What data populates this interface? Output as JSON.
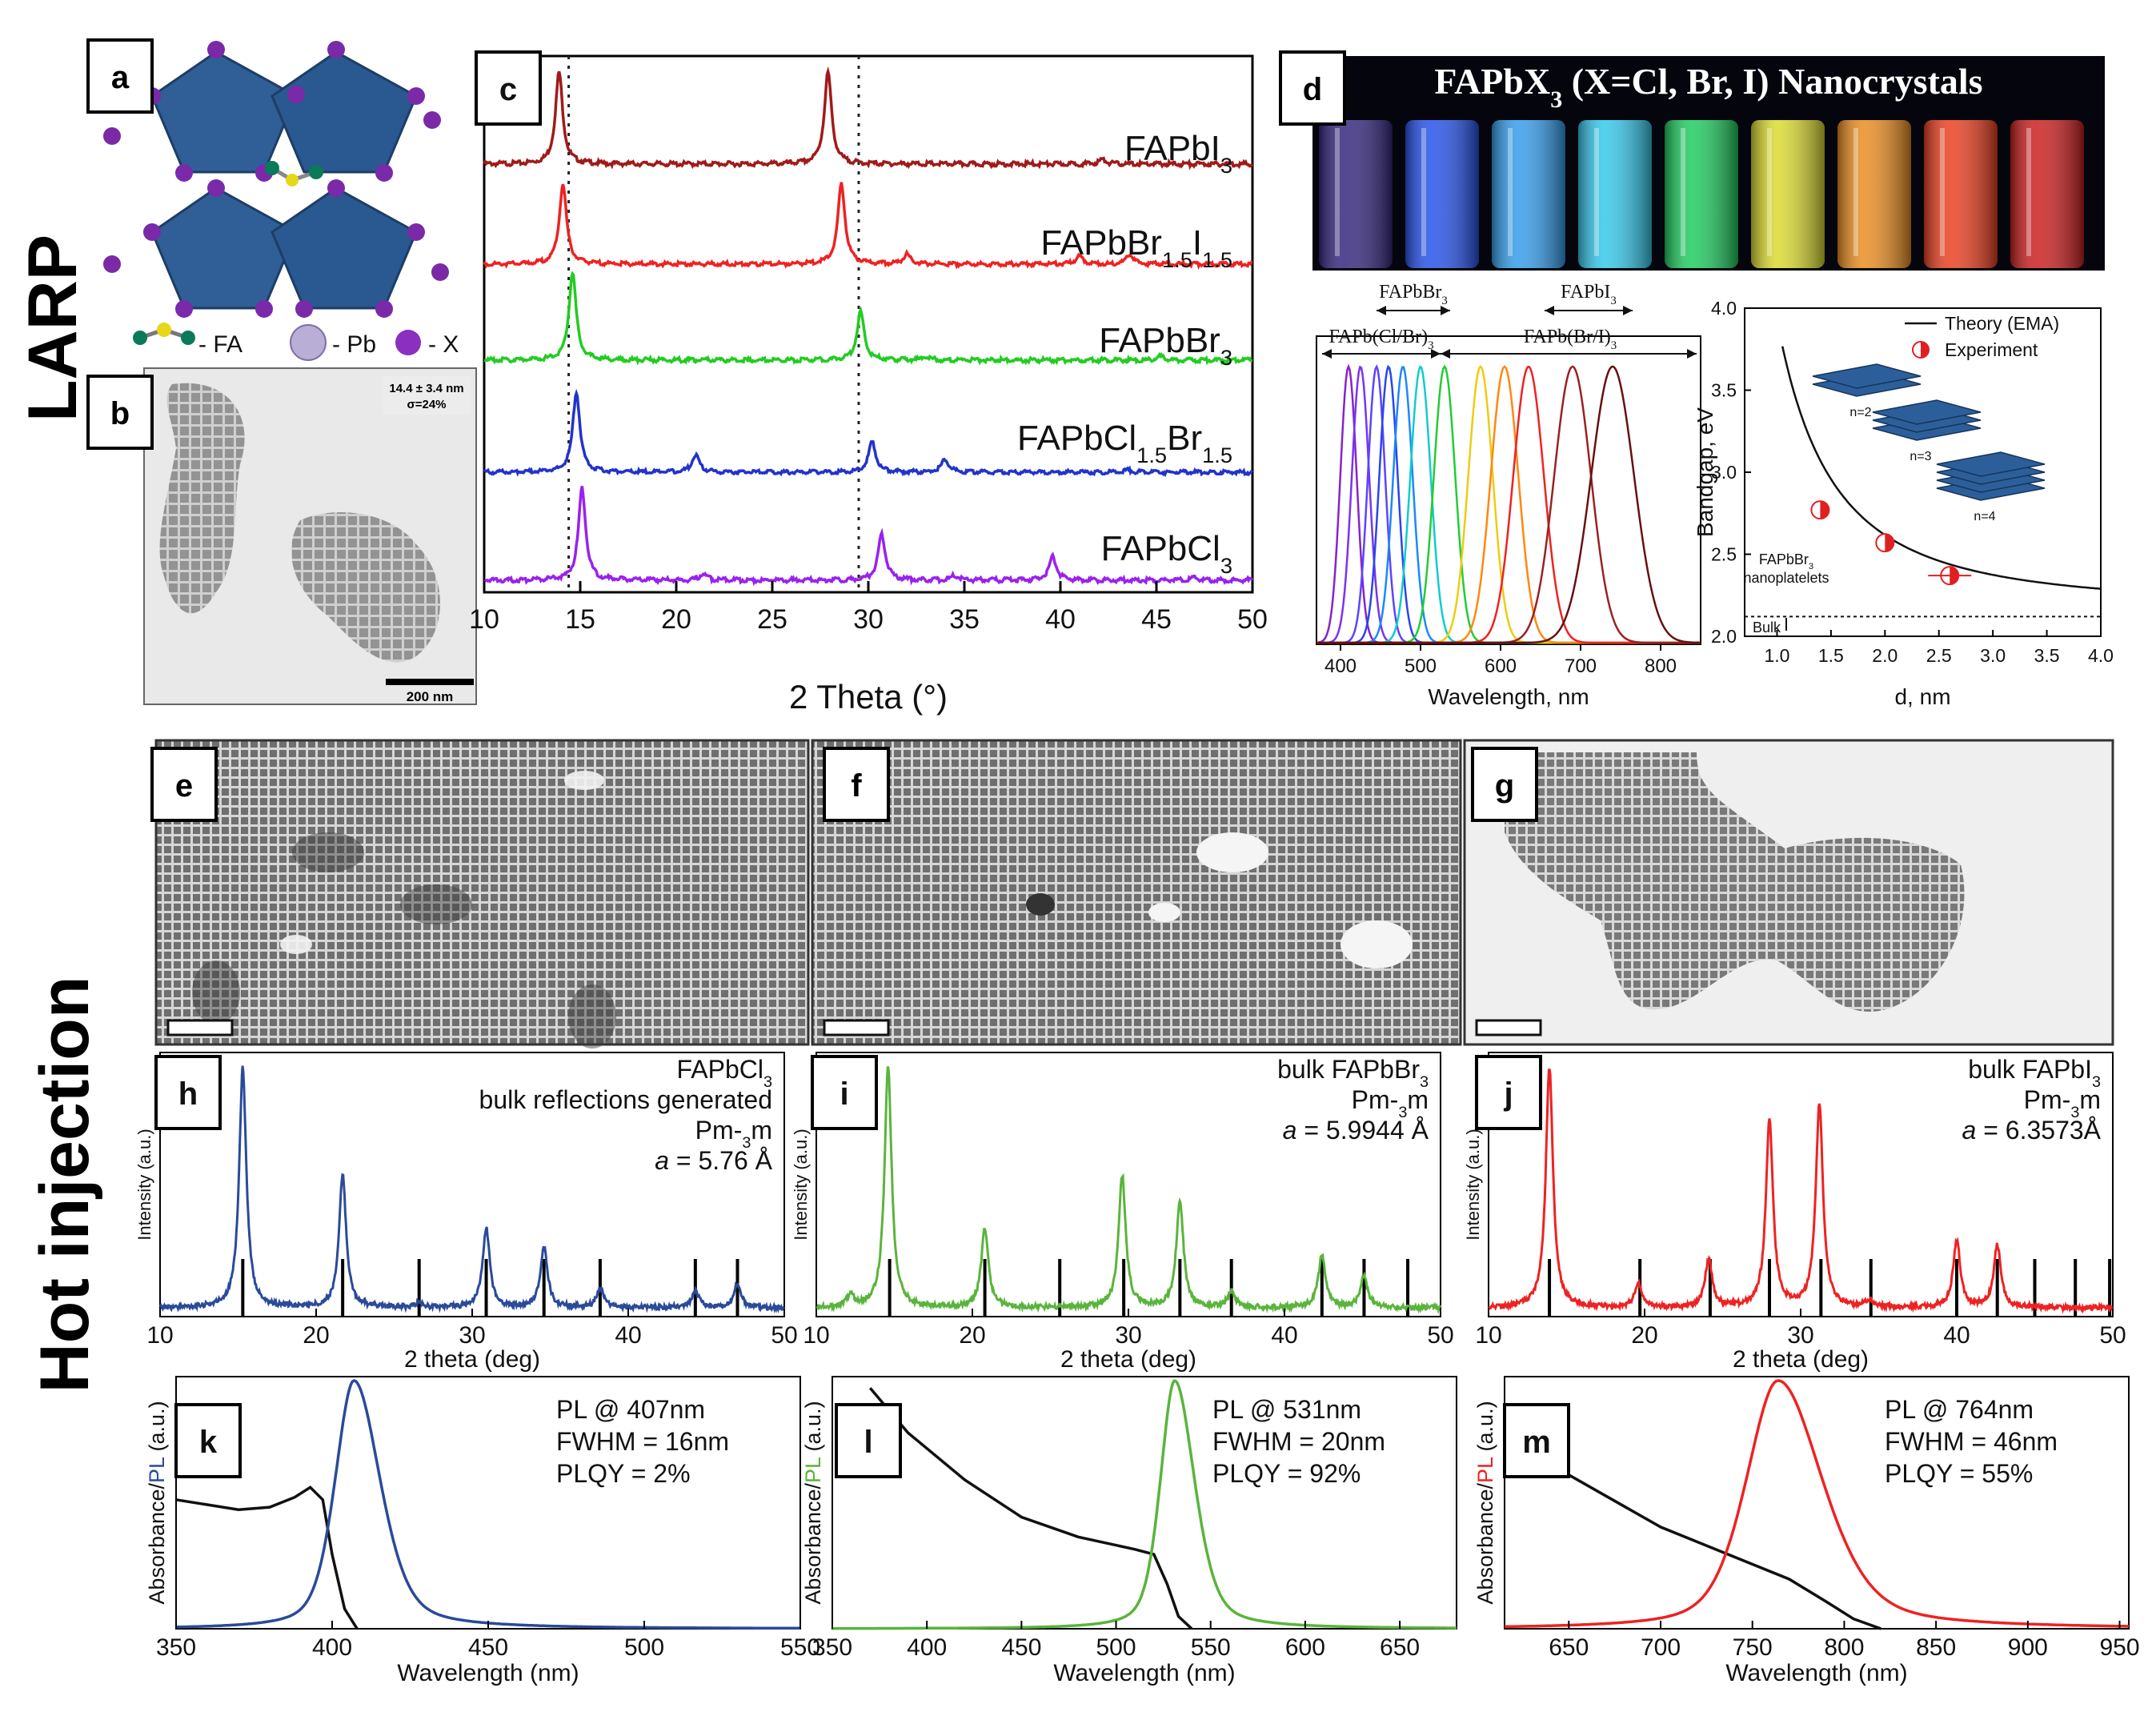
{
  "sections": {
    "larp": "LARP",
    "hot_injection": "Hot injection"
  },
  "panel_letters": {
    "a": "a",
    "b": "b",
    "c": "c",
    "d": "d",
    "e": "e",
    "f": "f",
    "g": "g",
    "h": "h",
    "i": "i",
    "j": "j",
    "k": "k",
    "l": "l",
    "m": "m"
  },
  "colors": {
    "fapbi3_dark": "#a01a1a",
    "red": "#ee2222",
    "green": "#22cc22",
    "blue": "#2233cc",
    "violet": "#9922ee",
    "navy": "#2a4a9a",
    "lime": "#5ab43c",
    "black": "#111111"
  },
  "panel_a": {
    "legend": {
      "fa": "- FA",
      "pb": "- Pb",
      "x": "- X"
    },
    "icons": [
      "fa-molecule-icon",
      "pb-atom-icon",
      "x-atom-icon"
    ]
  },
  "panel_b": {
    "size_text": "14.4 ± 3.4 nm",
    "sigma_text": "σ=24%",
    "scalebar": "200 nm"
  },
  "panel_d": {
    "photo_title": "FAPbX3 (X=Cl, Br, I) Nanocrystals",
    "vial_colors": [
      "#3a2a8a",
      "#2a5aff",
      "#3aaaff",
      "#3adaff",
      "#22dd66",
      "#eeee33",
      "#ff9922",
      "#ff4422",
      "#dd2222"
    ],
    "arrow_labels": {
      "br3": "FAPbBr3",
      "i3": "FAPbI3",
      "clbr": "FAPb(Cl/Br)3",
      "bri": "FAPb(Br/I)3"
    },
    "bandgap": {
      "legend_theory": "Theory (EMA)",
      "legend_experiment": "Experiment",
      "platelets": [
        "n=2",
        "n=3",
        "n=4"
      ],
      "annot_platelets": [
        "FAPbBr3",
        "nanoplatelets"
      ],
      "annot_bulk": "Bulk"
    }
  },
  "panel_h": {
    "text": [
      "FAPbCl3",
      "bulk reflections generated",
      "Pm-3m",
      "a = 5.76 Å"
    ]
  },
  "panel_i": {
    "text": [
      "bulk FAPbBr3",
      "Pm-3m",
      "a = 5.9944 Å"
    ]
  },
  "panel_j": {
    "text": [
      "bulk FAPbI3",
      "Pm-3m",
      "a = 6.3573Å"
    ]
  },
  "panel_k": {
    "text": [
      "PL @ 407nm",
      "FWHM = 16nm",
      "PLQY = 2%"
    ],
    "ylabel": [
      "Absorbance/",
      "PL",
      " (a.u.)"
    ]
  },
  "panel_l": {
    "text": [
      "PL @ 531nm",
      "FWHM = 20nm",
      "PLQY = 92%"
    ],
    "ylabel": [
      "Absorbance/",
      "PL",
      " (a.u.)"
    ]
  },
  "panel_m": {
    "text": [
      "PL @ 764nm",
      "FWHM = 46nm",
      "PLQY = 55%"
    ],
    "ylabel": [
      "Absorbance/",
      "PL",
      " (a.u.)"
    ]
  },
  "chart_data": [
    {
      "id": "c",
      "type": "line",
      "xlabel": "2 Theta (°)",
      "ylabel": "",
      "xlim": [
        10,
        50
      ],
      "xticks": [
        10,
        15,
        20,
        25,
        30,
        35,
        40,
        45,
        50
      ],
      "ref_lines": [
        14.4,
        29.5
      ],
      "series": [
        {
          "name": "FAPbI3",
          "color": "#a01a1a",
          "peaks": [
            [
              13.9,
              1.0
            ],
            [
              27.9,
              1.0
            ],
            [
              42.2,
              0.05
            ]
          ]
        },
        {
          "name": "FAPbBr1.5I1.5",
          "color": "#ee2222",
          "peaks": [
            [
              14.1,
              1.0
            ],
            [
              28.6,
              1.0
            ],
            [
              32.0,
              0.12
            ],
            [
              41.0,
              0.1
            ],
            [
              43.6,
              0.12
            ]
          ]
        },
        {
          "name": "FAPbBr3",
          "color": "#22cc22",
          "peaks": [
            [
              14.6,
              1.0
            ],
            [
              29.6,
              0.55
            ],
            [
              33.0,
              0.04
            ],
            [
              45.2,
              0.04
            ]
          ]
        },
        {
          "name": "FAPbCl1.5Br1.5",
          "color": "#2233cc",
          "peaks": [
            [
              14.8,
              1.0
            ],
            [
              21.0,
              0.22
            ],
            [
              30.2,
              0.38
            ],
            [
              34.0,
              0.16
            ],
            [
              43.5,
              0.03
            ]
          ]
        },
        {
          "name": "FAPbCl3",
          "color": "#9922ee",
          "peaks": [
            [
              15.1,
              1.0
            ],
            [
              21.4,
              0.07
            ],
            [
              30.7,
              0.5
            ],
            [
              34.5,
              0.05
            ],
            [
              39.6,
              0.26
            ],
            [
              47.0,
              0.03
            ]
          ]
        }
      ]
    },
    {
      "id": "d-pl",
      "type": "line",
      "xlabel": "Wavelength, nm",
      "ylabel": "",
      "xlim": [
        370,
        850
      ],
      "xticks": [
        400,
        500,
        600,
        700,
        800
      ],
      "series": [
        {
          "center": 410,
          "fwhm": 16,
          "color": "#8822cc"
        },
        {
          "center": 425,
          "fwhm": 17,
          "color": "#7a33ee"
        },
        {
          "center": 445,
          "fwhm": 17,
          "color": "#5a44ff"
        },
        {
          "center": 460,
          "fwhm": 18,
          "color": "#2a44ee"
        },
        {
          "center": 478,
          "fwhm": 19,
          "color": "#1a88ff"
        },
        {
          "center": 500,
          "fwhm": 20,
          "color": "#11cccc"
        },
        {
          "center": 530,
          "fwhm": 21,
          "color": "#22cc33"
        },
        {
          "center": 575,
          "fwhm": 24,
          "color": "#eecc11"
        },
        {
          "center": 605,
          "fwhm": 27,
          "color": "#ff8811"
        },
        {
          "center": 635,
          "fwhm": 30,
          "color": "#ee2222"
        },
        {
          "center": 690,
          "fwhm": 36,
          "color": "#992222"
        },
        {
          "center": 740,
          "fwhm": 42,
          "color": "#661111"
        }
      ]
    },
    {
      "id": "d-bandgap",
      "type": "scatter",
      "xlabel": "d, nm",
      "ylabel": "Bandgap, eV",
      "xlim": [
        0.7,
        4.0
      ],
      "ylim": [
        2.0,
        4.0
      ],
      "xticks": [
        1.0,
        1.5,
        2.0,
        2.5,
        3.0,
        3.5,
        4.0
      ],
      "yticks": [
        2.0,
        2.5,
        3.0,
        3.5,
        4.0
      ],
      "theory_curve": "2.18 + 1.75/d^2",
      "bulk": 2.12,
      "experiment": [
        {
          "x": 1.4,
          "y": 2.77
        },
        {
          "x": 2.0,
          "y": 2.57
        },
        {
          "x": 2.6,
          "y": 2.37
        }
      ]
    },
    {
      "id": "h",
      "type": "line",
      "xlabel": "2 theta (deg)",
      "ylabel": "Intensity (a.u.)",
      "color": "#2a4a9a",
      "xlim": [
        10,
        50
      ],
      "xticks": [
        10,
        20,
        30,
        40,
        50
      ],
      "peaks": [
        [
          15.3,
          1.0
        ],
        [
          21.7,
          0.55
        ],
        [
          26.6,
          0.02
        ],
        [
          30.9,
          0.33
        ],
        [
          34.6,
          0.25
        ],
        [
          38.2,
          0.08
        ],
        [
          44.3,
          0.07
        ],
        [
          47.0,
          0.1
        ]
      ],
      "refs": [
        [
          15.3,
          0.4
        ],
        [
          21.7,
          0.4
        ],
        [
          26.6,
          0.4
        ],
        [
          30.9,
          0.4
        ],
        [
          34.6,
          0.4
        ],
        [
          38.2,
          0.4
        ],
        [
          44.3,
          0.4
        ],
        [
          47.0,
          0.4
        ]
      ]
    },
    {
      "id": "i",
      "type": "line",
      "xlabel": "2 theta (deg)",
      "ylabel": "Intensity (a.u.)",
      "color": "#5ab43c",
      "xlim": [
        10,
        50
      ],
      "xticks": [
        10,
        20,
        30,
        40,
        50
      ],
      "peaks": [
        [
          12.2,
          0.05
        ],
        [
          14.6,
          1.0
        ],
        [
          20.8,
          0.33
        ],
        [
          29.6,
          0.55
        ],
        [
          33.3,
          0.44
        ],
        [
          36.6,
          0.07
        ],
        [
          42.4,
          0.22
        ],
        [
          45.1,
          0.13
        ]
      ],
      "refs": [
        [
          14.7,
          0.4
        ],
        [
          20.8,
          0.4
        ],
        [
          25.6,
          0.4
        ],
        [
          29.7,
          0.4
        ],
        [
          33.3,
          0.4
        ],
        [
          36.6,
          0.4
        ],
        [
          42.4,
          0.4
        ],
        [
          45.1,
          0.4
        ],
        [
          47.9,
          0.4
        ]
      ]
    },
    {
      "id": "j",
      "type": "line",
      "xlabel": "2 theta (deg)",
      "ylabel": "Intensity (a.u.)",
      "color": "#ee2222",
      "xlim": [
        10,
        50
      ],
      "xticks": [
        10,
        20,
        30,
        40,
        50
      ],
      "peaks": [
        [
          13.9,
          1.0
        ],
        [
          19.6,
          0.1
        ],
        [
          24.1,
          0.2
        ],
        [
          28.0,
          0.78
        ],
        [
          31.2,
          0.85
        ],
        [
          34.4,
          0.03
        ],
        [
          40.0,
          0.28
        ],
        [
          42.6,
          0.26
        ]
      ],
      "refs": [
        [
          13.9,
          0.4
        ],
        [
          19.7,
          0.4
        ],
        [
          24.2,
          0.4
        ],
        [
          28.0,
          0.4
        ],
        [
          31.3,
          0.4
        ],
        [
          34.5,
          0.4
        ],
        [
          40.0,
          0.4
        ],
        [
          42.6,
          0.4
        ],
        [
          45.0,
          0.4
        ],
        [
          47.6,
          0.4
        ],
        [
          49.8,
          0.4
        ]
      ]
    },
    {
      "id": "k",
      "type": "line",
      "xlabel": "Wavelength (nm)",
      "ylabel": "Absorbance/PL (a.u.)",
      "xlim": [
        350,
        550
      ],
      "xticks": [
        350,
        400,
        450,
        500,
        550
      ],
      "pl_color": "#2a4a9a",
      "pl": {
        "center": 407,
        "fwhm": 16
      },
      "absorbance": [
        [
          350,
          0.52
        ],
        [
          360,
          0.5
        ],
        [
          370,
          0.48
        ],
        [
          380,
          0.49
        ],
        [
          388,
          0.53
        ],
        [
          393,
          0.57
        ],
        [
          397,
          0.52
        ],
        [
          400,
          0.3
        ],
        [
          404,
          0.08
        ],
        [
          408,
          0.0
        ]
      ]
    },
    {
      "id": "l",
      "type": "line",
      "xlabel": "Wavelength (nm)",
      "ylabel": "Absorbance/PL (a.u.)",
      "xlim": [
        350,
        680
      ],
      "xticks": [
        350,
        400,
        450,
        500,
        550,
        600,
        650
      ],
      "pl_color": "#5ab43c",
      "pl": {
        "center": 531,
        "fwhm": 20
      },
      "absorbance": [
        [
          370,
          0.97
        ],
        [
          390,
          0.79
        ],
        [
          420,
          0.6
        ],
        [
          450,
          0.45
        ],
        [
          480,
          0.37
        ],
        [
          510,
          0.32
        ],
        [
          520,
          0.3
        ],
        [
          527,
          0.18
        ],
        [
          533,
          0.05
        ],
        [
          540,
          0.0
        ]
      ]
    },
    {
      "id": "m",
      "type": "line",
      "xlabel": "Wavelength (nm)",
      "ylabel": "Absorbance/PL (a.u.)",
      "xlim": [
        615,
        955
      ],
      "xticks": [
        650,
        700,
        750,
        800,
        850,
        900,
        950
      ],
      "pl_color": "#ee2222",
      "pl": {
        "center": 764,
        "fwhm": 46
      },
      "absorbance": [
        [
          615,
          0.82
        ],
        [
          650,
          0.62
        ],
        [
          700,
          0.41
        ],
        [
          740,
          0.29
        ],
        [
          770,
          0.2
        ],
        [
          790,
          0.11
        ],
        [
          805,
          0.04
        ],
        [
          820,
          0.0
        ]
      ]
    }
  ]
}
